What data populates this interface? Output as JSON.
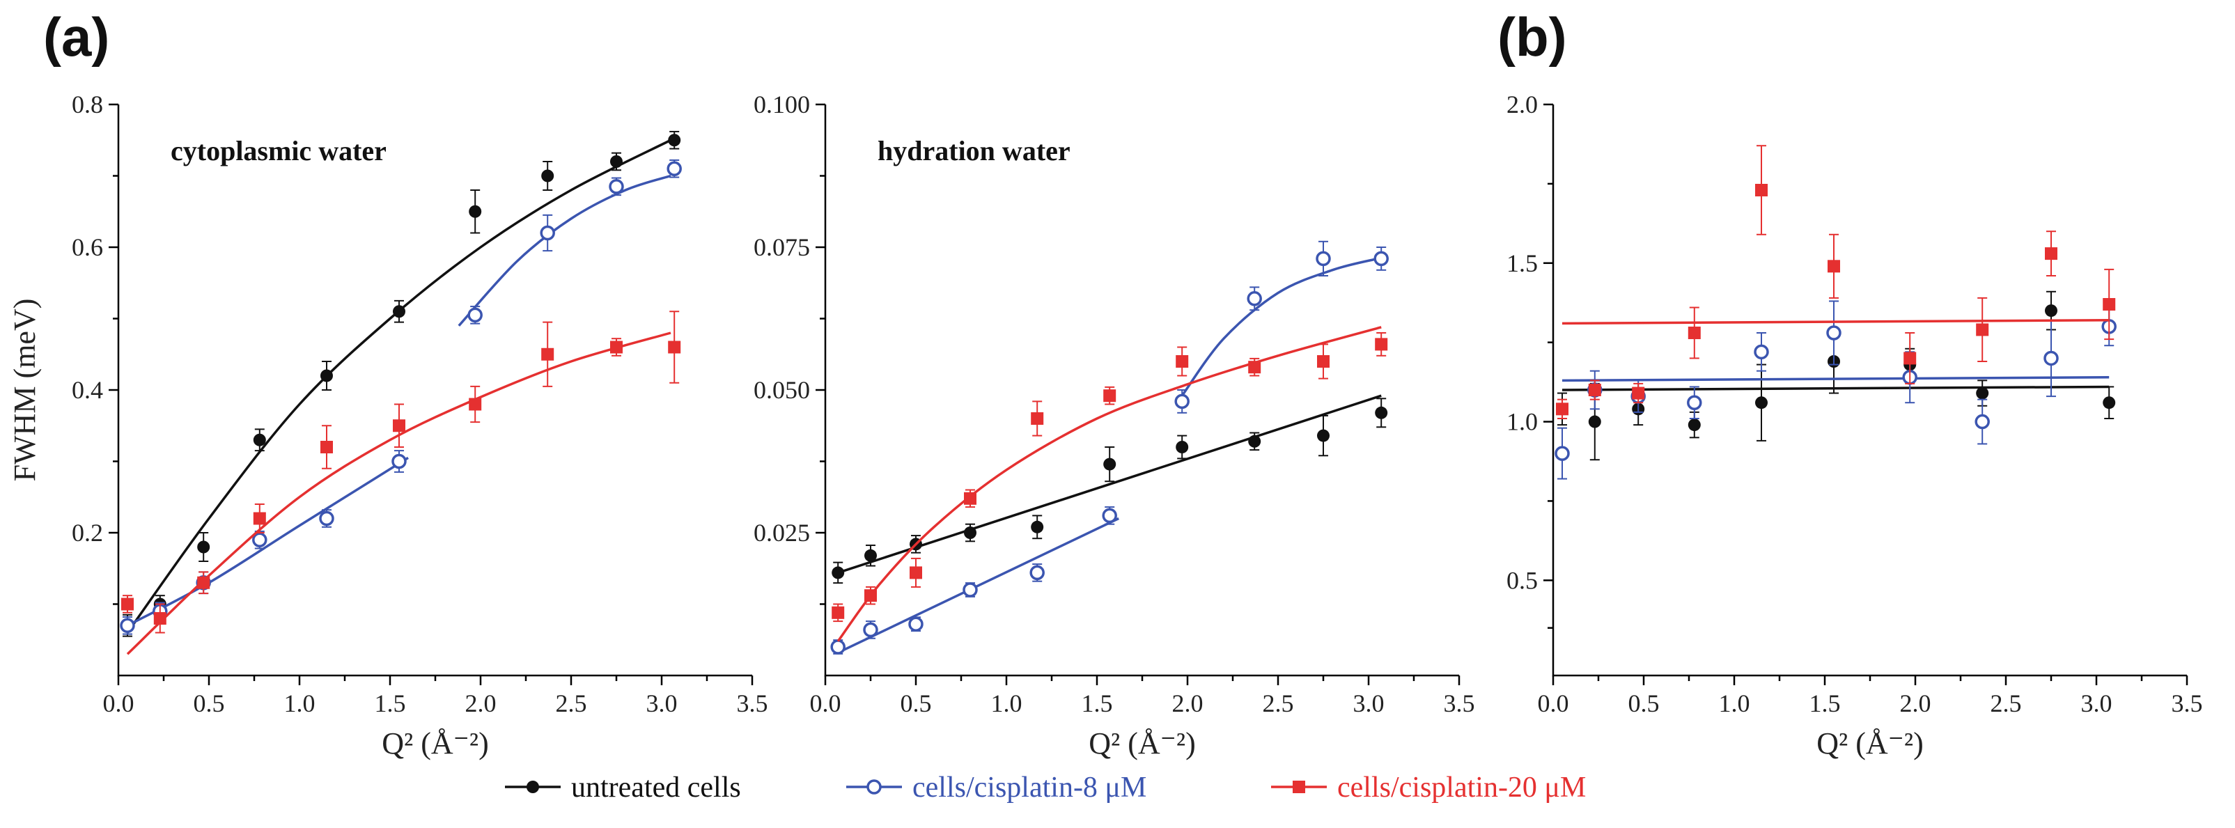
{
  "panel_labels": [
    "(a)",
    "(b)"
  ],
  "colors": {
    "untreated": "#111111",
    "cis8": "#3b55b0",
    "cis20": "#e53030"
  },
  "legend": [
    {
      "key": "untreated",
      "label": "untreated cells",
      "marker": "filled-circle"
    },
    {
      "key": "cis8",
      "label": "cells/cisplatin-8 μM",
      "marker": "open-circle"
    },
    {
      "key": "cis20",
      "label": "cells/cisplatin-20 μM",
      "marker": "filled-square"
    }
  ],
  "chart_data": [
    {
      "type": "scatter",
      "panel": "(a)",
      "title": "cytoplasmic water",
      "xlabel": "Q² (Å⁻²)",
      "ylabel": "FWHM (meV)",
      "xlim": [
        0,
        3.5
      ],
      "ylim": [
        0,
        0.8
      ],
      "xticks": [
        "0.0",
        "0.5",
        "1.0",
        "1.5",
        "2.0",
        "2.5",
        "3.0",
        "3.5"
      ],
      "yticks": [
        "0.2",
        "0.4",
        "0.6",
        "0.8"
      ],
      "ytick_values": [
        0.2,
        0.4,
        0.6,
        0.8
      ],
      "series": [
        {
          "key": "untreated",
          "name": "untreated cells",
          "x": [
            0.05,
            0.23,
            0.47,
            0.78,
            1.15,
            1.55,
            1.97,
            2.37,
            2.75,
            3.07
          ],
          "y": [
            0.07,
            0.1,
            0.18,
            0.33,
            0.42,
            0.51,
            0.65,
            0.7,
            0.72,
            0.75
          ],
          "err": [
            0.015,
            0.012,
            0.02,
            0.015,
            0.02,
            0.015,
            0.03,
            0.02,
            0.012,
            0.012
          ],
          "fit": {
            "x": [
              0.05,
              0.5,
              1.0,
              1.5,
              2.0,
              2.5,
              3.05
            ],
            "y": [
              0.06,
              0.22,
              0.38,
              0.5,
              0.6,
              0.68,
              0.75
            ]
          }
        },
        {
          "key": "cis8",
          "name": "cells/cisplatin-8 μM",
          "x": [
            0.05,
            0.23,
            0.47,
            0.78,
            1.15,
            1.55,
            1.97,
            2.37,
            2.75,
            3.07
          ],
          "y": [
            0.07,
            0.09,
            0.13,
            0.19,
            0.22,
            0.3,
            0.505,
            0.62,
            0.685,
            0.71
          ],
          "err": [
            0.012,
            0.012,
            0.015,
            0.012,
            0.012,
            0.015,
            0.012,
            0.025,
            0.012,
            0.012
          ],
          "fit": [
            {
              "x": [
                0.05,
                0.5,
                1.0,
                1.6
              ],
              "y": [
                0.07,
                0.13,
                0.21,
                0.305
              ]
            },
            {
              "x": [
                1.88,
                2.2,
                2.5,
                2.8,
                3.05
              ],
              "y": [
                0.49,
                0.58,
                0.64,
                0.68,
                0.7
              ]
            }
          ]
        },
        {
          "key": "cis20",
          "name": "cells/cisplatin-20 μM",
          "x": [
            0.05,
            0.23,
            0.47,
            0.78,
            1.15,
            1.55,
            1.97,
            2.37,
            2.75,
            3.07
          ],
          "y": [
            0.1,
            0.08,
            0.13,
            0.22,
            0.32,
            0.35,
            0.38,
            0.45,
            0.46,
            0.46
          ],
          "err": [
            0.012,
            0.02,
            0.015,
            0.02,
            0.03,
            0.03,
            0.025,
            0.045,
            0.012,
            0.05
          ],
          "fit": {
            "x": [
              0.05,
              0.5,
              1.0,
              1.5,
              2.0,
              2.5,
              3.05
            ],
            "y": [
              0.03,
              0.14,
              0.25,
              0.33,
              0.39,
              0.44,
              0.48
            ]
          }
        }
      ]
    },
    {
      "type": "scatter",
      "title": "hydration water",
      "xlabel": "Q² (Å⁻²)",
      "ylabel": "",
      "xlim": [
        0,
        3.5
      ],
      "ylim": [
        0,
        0.1
      ],
      "xticks": [
        "0.0",
        "0.5",
        "1.0",
        "1.5",
        "2.0",
        "2.5",
        "3.0",
        "3.5"
      ],
      "yticks": [
        "0.025",
        "0.050",
        "0.075",
        "0.100"
      ],
      "ytick_values": [
        0.025,
        0.05,
        0.075,
        0.1
      ],
      "series": [
        {
          "key": "untreated",
          "name": "untreated cells",
          "x": [
            0.07,
            0.25,
            0.5,
            0.8,
            1.17,
            1.57,
            1.97,
            2.37,
            2.75,
            3.07
          ],
          "y": [
            0.018,
            0.021,
            0.023,
            0.025,
            0.026,
            0.037,
            0.04,
            0.041,
            0.042,
            0.046
          ],
          "err": [
            0.0018,
            0.0018,
            0.0015,
            0.0015,
            0.002,
            0.003,
            0.002,
            0.0015,
            0.0035,
            0.0025
          ],
          "fit": {
            "x": [
              0.07,
              3.07
            ],
            "y": [
              0.018,
              0.049
            ]
          }
        },
        {
          "key": "cis8",
          "name": "cells/cisplatin-8 μM",
          "x": [
            0.07,
            0.25,
            0.5,
            0.8,
            1.17,
            1.57,
            1.97,
            2.37,
            2.75,
            3.07
          ],
          "y": [
            0.005,
            0.008,
            0.009,
            0.015,
            0.018,
            0.028,
            0.048,
            0.066,
            0.073,
            0.073
          ],
          "err": [
            0.0012,
            0.0015,
            0.0012,
            0.0012,
            0.0015,
            0.0015,
            0.002,
            0.002,
            0.003,
            0.002
          ],
          "fit": [
            {
              "x": [
                0.07,
                1.62
              ],
              "y": [
                0.004,
                0.0275
              ]
            },
            {
              "x": [
                1.97,
                2.2,
                2.5,
                2.8,
                3.05
              ],
              "y": [
                0.049,
                0.059,
                0.067,
                0.071,
                0.073
              ]
            }
          ]
        },
        {
          "key": "cis20",
          "name": "cells/cisplatin-20 μM",
          "x": [
            0.07,
            0.25,
            0.5,
            0.8,
            1.17,
            1.57,
            1.97,
            2.37,
            2.75,
            3.07
          ],
          "y": [
            0.011,
            0.014,
            0.018,
            0.031,
            0.045,
            0.049,
            0.055,
            0.054,
            0.055,
            0.058
          ],
          "err": [
            0.0015,
            0.0015,
            0.0025,
            0.0015,
            0.003,
            0.0015,
            0.0025,
            0.0015,
            0.003,
            0.002
          ],
          "fit": {
            "x": [
              0.07,
              0.3,
              0.6,
              1.0,
              1.5,
              2.0,
              2.5,
              3.07
            ],
            "y": [
              0.006,
              0.016,
              0.026,
              0.036,
              0.045,
              0.051,
              0.056,
              0.061
            ]
          }
        }
      ]
    },
    {
      "type": "scatter",
      "panel": "(b)",
      "title": "",
      "xlabel": "Q² (Å⁻²)",
      "ylabel": "",
      "xlim": [
        0,
        3.5
      ],
      "ylim": [
        0.2,
        2.0
      ],
      "xticks": [
        "0.0",
        "0.5",
        "1.0",
        "1.5",
        "2.0",
        "2.5",
        "3.0",
        "3.5"
      ],
      "yticks": [
        "0.5",
        "1.0",
        "1.5",
        "2.0"
      ],
      "ytick_values": [
        0.5,
        1.0,
        1.5,
        2.0
      ],
      "series": [
        {
          "key": "untreated",
          "name": "untreated cells",
          "x": [
            0.05,
            0.23,
            0.47,
            0.78,
            1.15,
            1.55,
            1.97,
            2.37,
            2.75,
            3.07
          ],
          "y": [
            1.04,
            1.0,
            1.04,
            0.99,
            1.06,
            1.19,
            1.18,
            1.09,
            1.35,
            1.06
          ],
          "err": [
            0.05,
            0.12,
            0.05,
            0.04,
            0.12,
            0.1,
            0.05,
            0.04,
            0.06,
            0.05
          ],
          "fit": {
            "x": [
              0.05,
              3.07
            ],
            "y": [
              1.1,
              1.11
            ]
          }
        },
        {
          "key": "cis8",
          "name": "cells/cisplatin-8 μM",
          "x": [
            0.05,
            0.23,
            0.47,
            0.78,
            1.15,
            1.55,
            1.97,
            2.37,
            2.75,
            3.07
          ],
          "y": [
            0.9,
            1.1,
            1.08,
            1.06,
            1.22,
            1.28,
            1.14,
            1.0,
            1.2,
            1.3
          ],
          "err": [
            0.08,
            0.06,
            0.05,
            0.05,
            0.06,
            0.1,
            0.08,
            0.07,
            0.12,
            0.06
          ],
          "fit": {
            "x": [
              0.05,
              3.07
            ],
            "y": [
              1.13,
              1.14
            ]
          }
        },
        {
          "key": "cis20",
          "name": "cells/cisplatin-20 μM",
          "x": [
            0.05,
            0.23,
            0.47,
            0.78,
            1.15,
            1.55,
            1.97,
            2.37,
            2.75,
            3.07
          ],
          "y": [
            1.04,
            1.1,
            1.09,
            1.28,
            1.73,
            1.49,
            1.2,
            1.29,
            1.53,
            1.37
          ],
          "err": [
            0.03,
            0.03,
            0.03,
            0.08,
            0.14,
            0.1,
            0.08,
            0.1,
            0.07,
            0.11
          ],
          "fit": {
            "x": [
              0.05,
              3.07
            ],
            "y": [
              1.31,
              1.32
            ]
          }
        }
      ]
    }
  ]
}
